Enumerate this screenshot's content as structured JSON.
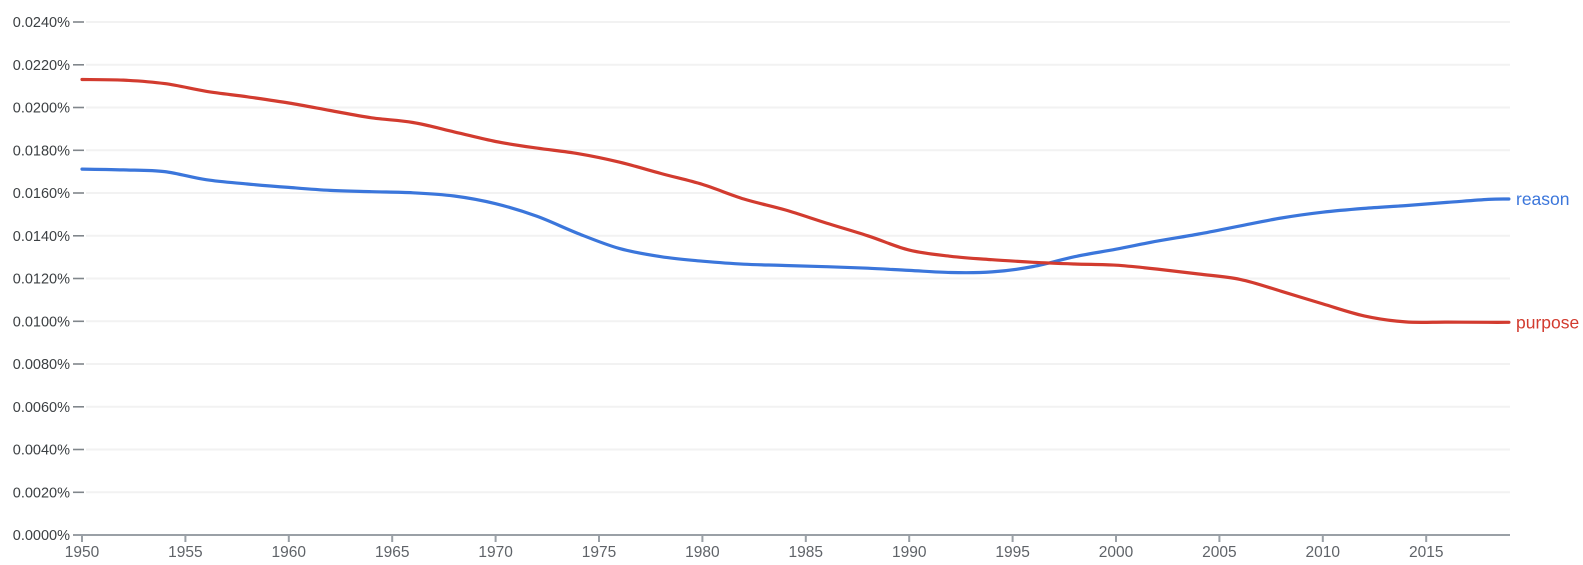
{
  "chart_data": {
    "type": "line",
    "title": "",
    "xlabel": "",
    "ylabel": "",
    "grid": true,
    "legend_position": "end-of-line",
    "x_range": [
      1950,
      2019
    ],
    "ylim_percent": [
      0.0,
      0.024
    ],
    "y_ticks": [
      {
        "value": 0.0,
        "label": "0.0000%"
      },
      {
        "value": 0.002,
        "label": "0.0020%"
      },
      {
        "value": 0.004,
        "label": "0.0040%"
      },
      {
        "value": 0.006,
        "label": "0.0060%"
      },
      {
        "value": 0.008,
        "label": "0.0080%"
      },
      {
        "value": 0.01,
        "label": "0.0100%"
      },
      {
        "value": 0.012,
        "label": "0.0120%"
      },
      {
        "value": 0.014,
        "label": "0.0140%"
      },
      {
        "value": 0.016,
        "label": "0.0160%"
      },
      {
        "value": 0.018,
        "label": "0.0180%"
      },
      {
        "value": 0.02,
        "label": "0.0200%"
      },
      {
        "value": 0.022,
        "label": "0.0220%"
      },
      {
        "value": 0.024,
        "label": "0.0240%"
      }
    ],
    "x_ticks": [
      1950,
      1955,
      1960,
      1965,
      1970,
      1975,
      1980,
      1985,
      1990,
      1995,
      2000,
      2005,
      2010,
      2015
    ],
    "x": [
      1950,
      1952,
      1954,
      1956,
      1958,
      1960,
      1962,
      1964,
      1966,
      1968,
      1970,
      1972,
      1974,
      1976,
      1978,
      1980,
      1982,
      1984,
      1986,
      1988,
      1990,
      1992,
      1994,
      1996,
      1998,
      2000,
      2002,
      2004,
      2006,
      2008,
      2010,
      2012,
      2014,
      2016,
      2018,
      2019
    ],
    "series": [
      {
        "name": "reason",
        "color": "#3b76db",
        "values_percent": [
          0.01712,
          0.01708,
          0.017,
          0.01662,
          0.01642,
          0.01626,
          0.01612,
          0.01606,
          0.01601,
          0.01586,
          0.0155,
          0.01491,
          0.0141,
          0.0134,
          0.01302,
          0.01281,
          0.01267,
          0.01261,
          0.01255,
          0.01248,
          0.01238,
          0.01228,
          0.01231,
          0.01256,
          0.01302,
          0.01337,
          0.01375,
          0.01408,
          0.01446,
          0.01483,
          0.0151,
          0.01528,
          0.01541,
          0.01556,
          0.0157,
          0.01572
        ]
      },
      {
        "name": "purpose",
        "color": "#d23b2f",
        "values_percent": [
          0.02131,
          0.02128,
          0.02112,
          0.02076,
          0.0205,
          0.02021,
          0.01986,
          0.01952,
          0.0193,
          0.01886,
          0.01841,
          0.0181,
          0.01784,
          0.01744,
          0.01691,
          0.0164,
          0.01572,
          0.01521,
          0.01459,
          0.014,
          0.01333,
          0.01304,
          0.01288,
          0.01276,
          0.01268,
          0.01262,
          0.01244,
          0.01221,
          0.01196,
          0.0114,
          0.01081,
          0.01025,
          0.00997,
          0.00996,
          0.00995,
          0.00995
        ]
      }
    ],
    "colors": {
      "gridline": "#f2f2f2",
      "axis_line": "#9aa0a6",
      "y_tick_dash": "#80868b",
      "x_tick": "#9aa0a6",
      "y_label_text": "#3c4043",
      "x_label_text": "#5f6368"
    }
  }
}
